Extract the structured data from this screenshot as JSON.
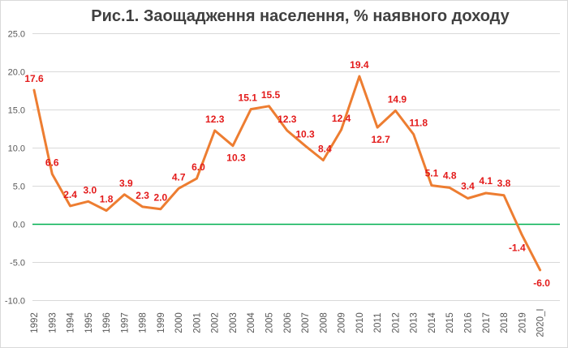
{
  "chart_data": {
    "type": "line",
    "title": "Рис.1. Заощадження населення, % наявного доходу",
    "categories": [
      "1992",
      "1993",
      "1994",
      "1995",
      "1996",
      "1997",
      "1998",
      "1999",
      "2000",
      "2001",
      "2002",
      "2003",
      "2004",
      "2005",
      "2006",
      "2007",
      "2008",
      "2009",
      "2010",
      "2011",
      "2012",
      "2013",
      "2014",
      "2015",
      "2016",
      "2017",
      "2018",
      "2019",
      "2020_I"
    ],
    "series": [
      {
        "values": [
          17.6,
          6.6,
          2.4,
          3.0,
          1.8,
          3.9,
          2.3,
          2.0,
          4.7,
          6.0,
          12.3,
          10.3,
          15.1,
          15.5,
          12.3,
          10.3,
          8.4,
          12.4,
          19.4,
          12.7,
          14.9,
          11.8,
          5.1,
          4.8,
          3.4,
          4.1,
          3.8,
          -1.4,
          -6.0
        ],
        "data_labels": [
          "17.6",
          "6.6",
          "2.4",
          "3.0",
          "1.8",
          "3.9",
          "2.3",
          "2.0",
          "4.7",
          "6.0",
          "12.3",
          "10.3",
          "15.1",
          "15.5",
          "12.3",
          "10.3",
          "8.4",
          "12.4",
          "19.4",
          "12.7",
          "14.9",
          "11.8",
          "5.1",
          "4.8",
          "3.4",
          "4.1",
          "3.8",
          "-1.4",
          "-6.0"
        ]
      }
    ],
    "yticks": [
      "25.0",
      "20.0",
      "15.0",
      "10.0",
      "5.0",
      "0.0",
      "-5.0",
      "-10.0"
    ],
    "ylim": [
      -10,
      25
    ],
    "xlabel": "",
    "ylabel": "",
    "grid": true,
    "legend": "none",
    "colors": {
      "line": "#ed7d31",
      "zero_line": "#00b050",
      "labels": "#e31a1a",
      "grid": "#d9d9d9"
    }
  }
}
